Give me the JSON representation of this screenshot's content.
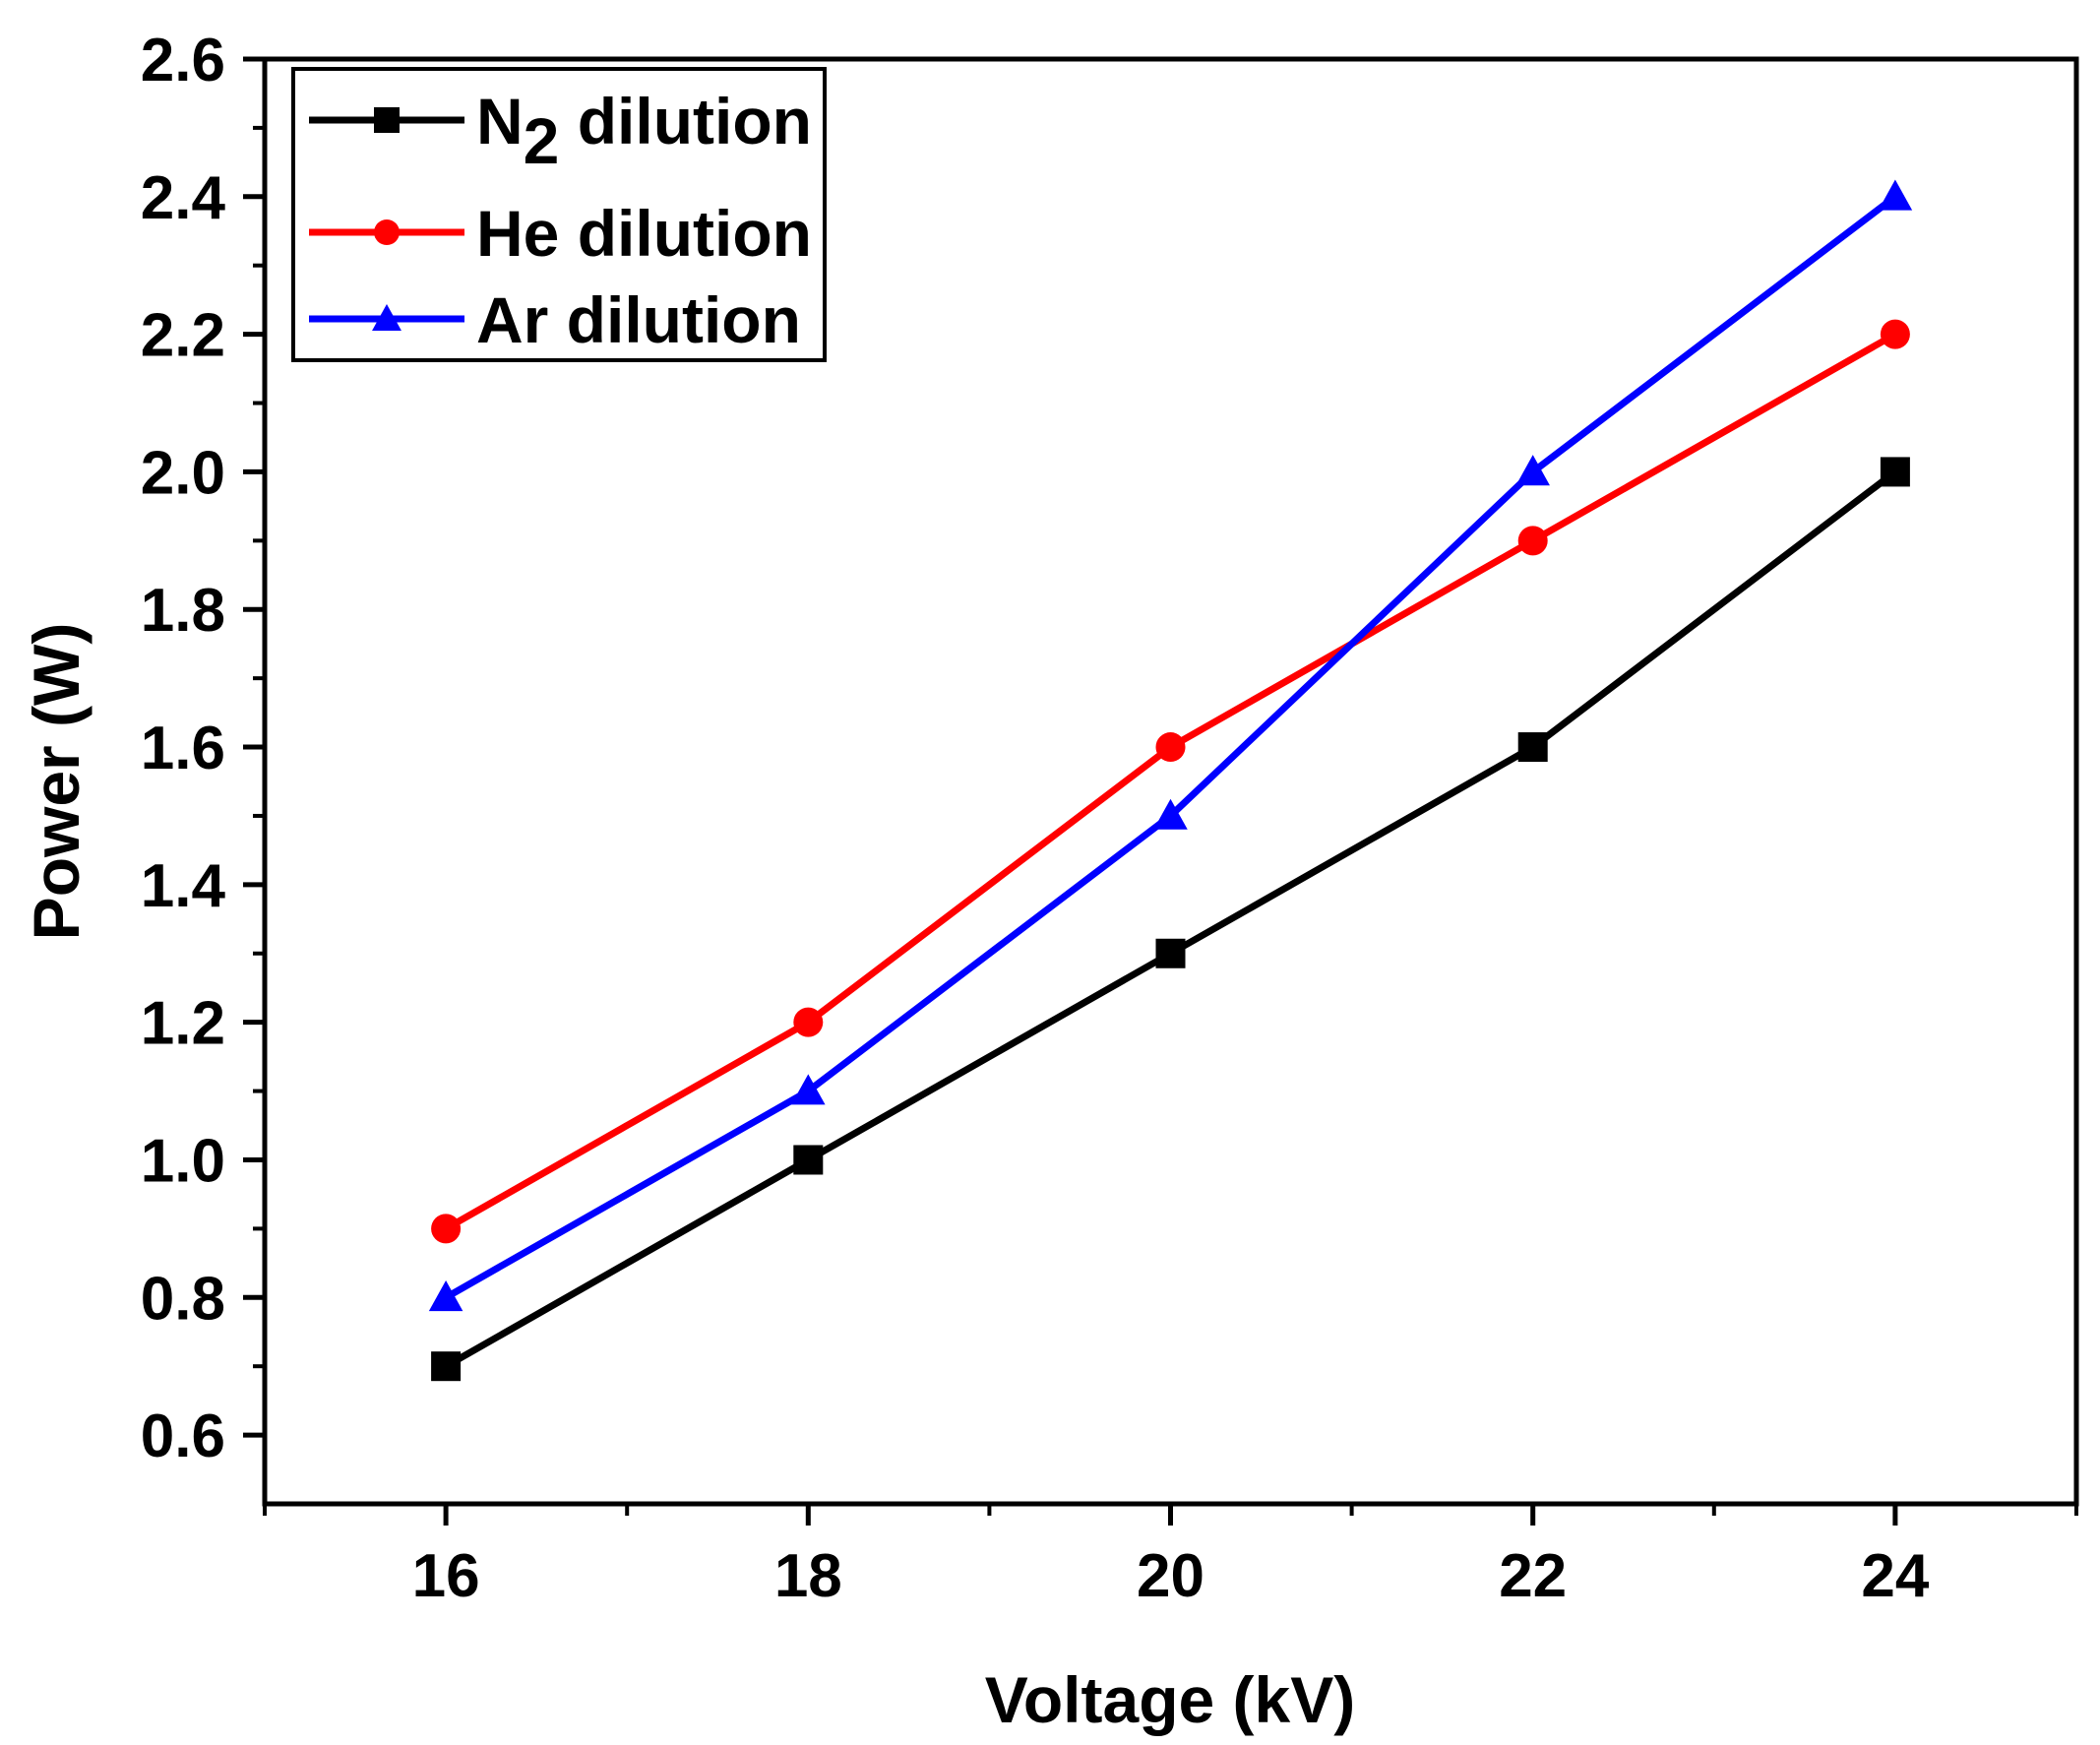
{
  "chart_data": {
    "type": "line",
    "title": "",
    "xlabel": "Voltage (kV)",
    "ylabel": "Power (W)",
    "xlim": [
      15,
      25
    ],
    "ylim": [
      0.5,
      2.6
    ],
    "x": [
      16,
      18,
      20,
      22,
      24
    ],
    "xticks": [
      16,
      18,
      20,
      22,
      24
    ],
    "yticks": [
      0.6,
      0.8,
      1.0,
      1.2,
      1.4,
      1.6,
      1.8,
      2.0,
      2.2,
      2.4,
      2.6
    ],
    "legend_position": "top-left",
    "series": [
      {
        "name": "N2 dilution",
        "base": "N",
        "sub": "2",
        "suffix": " dilution",
        "color": "#000000",
        "marker": "square",
        "values": [
          0.7,
          1.0,
          1.3,
          1.6,
          2.0
        ]
      },
      {
        "name": "He dilution",
        "base": "He dilution",
        "sub": "",
        "suffix": "",
        "color": "#ff0000",
        "marker": "circle",
        "values": [
          0.9,
          1.2,
          1.6,
          1.9,
          2.2
        ]
      },
      {
        "name": "Ar dilution",
        "base": "Ar dilution",
        "sub": "",
        "suffix": "",
        "color": "#0000ff",
        "marker": "triangle",
        "values": [
          0.8,
          1.1,
          1.5,
          2.0,
          2.4
        ]
      }
    ]
  }
}
